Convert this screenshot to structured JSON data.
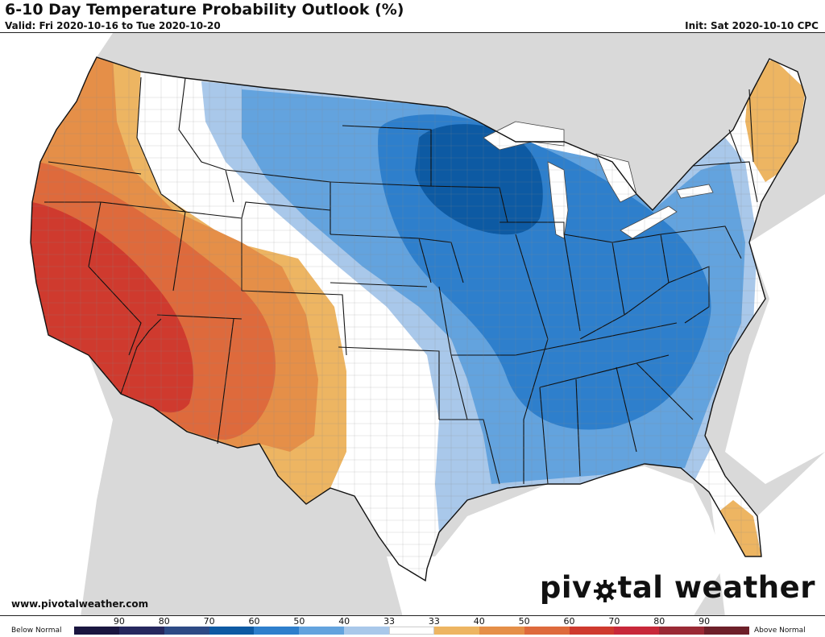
{
  "title": "6-10 Day Temperature Probability Outlook (%)",
  "valid": "Valid: Fri 2020-10-16 to Tue 2020-10-20",
  "init": "Init: Sat 2020-10-10 CPC",
  "website": "www.pivotalweather.com",
  "brand": {
    "before": "piv",
    "after": "tal weather",
    "icon": "gear-icon"
  },
  "legend": {
    "below_label": "Below Normal",
    "above_label": "Above Normal",
    "ticks": [
      "90",
      "80",
      "70",
      "60",
      "50",
      "40",
      "33",
      "33",
      "40",
      "50",
      "60",
      "70",
      "80",
      "90"
    ],
    "colors": [
      "#1a1640",
      "#26285e",
      "#2d4a85",
      "#0d5aa3",
      "#2e7fcc",
      "#63a3de",
      "#a9c8ea",
      "#ffffff",
      "#edb562",
      "#e58f48",
      "#de6a3c",
      "#cf3a2e",
      "#c8283a",
      "#9a2a35",
      "#6d2029"
    ]
  },
  "map": {
    "land_color": "#ffffff",
    "outside_color": "#d9d9d9",
    "water_color": "#ffffff",
    "regions": [
      {
        "name": "below-normal-40-50-region",
        "category": "Below Normal 40-50"
      },
      {
        "name": "below-normal-50-60-region",
        "category": "Below Normal 50-60"
      },
      {
        "name": "below-normal-60-70-region",
        "category": "Below Normal 60-70"
      },
      {
        "name": "above-normal-40-50-region",
        "category": "Above Normal 40-50"
      },
      {
        "name": "above-normal-50-60-region",
        "category": "Above Normal 50-60"
      },
      {
        "name": "above-normal-60-70-region",
        "category": "Above Normal 60-70"
      }
    ]
  }
}
